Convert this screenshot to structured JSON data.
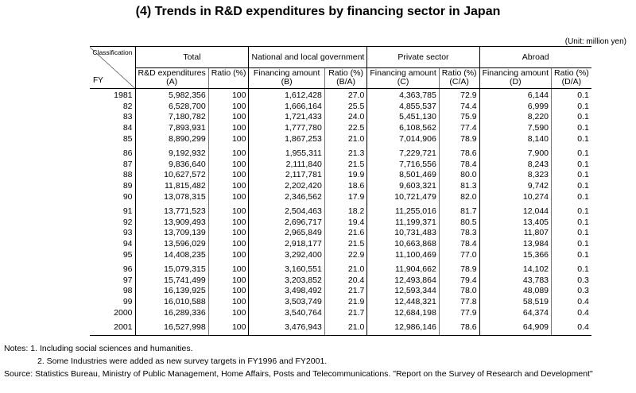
{
  "title": "(4) Trends in R&D expenditures by financing sector in Japan",
  "unit": "(Unit: million yen)",
  "header": {
    "classification": "Classification",
    "fy": "FY",
    "total": "Total",
    "national": "National and local government",
    "private": "Private sector",
    "abroad": "Abroad",
    "rd_expenditures": "R&D expenditures",
    "rd_code": "(A)",
    "ratio": "Ratio (%)",
    "financing_amount": "Financing amount",
    "b_code": "(B)",
    "ba_code": "(B/A)",
    "c_code": "(C)",
    "ca_code": "(C/A)",
    "d_code": "(D)",
    "da_code": "(D/A)"
  },
  "rows": [
    {
      "fy": "1981",
      "total": "5,982,356",
      "total_ratio": "100",
      "gov": "1,612,428",
      "gov_ratio": "27.0",
      "priv": "4,363,785",
      "priv_ratio": "72.9",
      "abroad": "6,144",
      "abroad_ratio": "0.1"
    },
    {
      "fy": "82",
      "total": "6,528,700",
      "total_ratio": "100",
      "gov": "1,666,164",
      "gov_ratio": "25.5",
      "priv": "4,855,537",
      "priv_ratio": "74.4",
      "abroad": "6,999",
      "abroad_ratio": "0.1"
    },
    {
      "fy": "83",
      "total": "7,180,782",
      "total_ratio": "100",
      "gov": "1,721,433",
      "gov_ratio": "24.0",
      "priv": "5,451,130",
      "priv_ratio": "75.9",
      "abroad": "8,220",
      "abroad_ratio": "0.1"
    },
    {
      "fy": "84",
      "total": "7,893,931",
      "total_ratio": "100",
      "gov": "1,777,780",
      "gov_ratio": "22.5",
      "priv": "6,108,562",
      "priv_ratio": "77.4",
      "abroad": "7,590",
      "abroad_ratio": "0.1"
    },
    {
      "fy": "85",
      "total": "8,890,299",
      "total_ratio": "100",
      "gov": "1,867,253",
      "gov_ratio": "21.0",
      "priv": "7,014,906",
      "priv_ratio": "78.9",
      "abroad": "8,140",
      "abroad_ratio": "0.1"
    },
    {
      "fy": "86",
      "total": "9,192,932",
      "total_ratio": "100",
      "gov": "1,955,311",
      "gov_ratio": "21.3",
      "priv": "7,229,721",
      "priv_ratio": "78.6",
      "abroad": "7,900",
      "abroad_ratio": "0.1"
    },
    {
      "fy": "87",
      "total": "9,836,640",
      "total_ratio": "100",
      "gov": "2,111,840",
      "gov_ratio": "21.5",
      "priv": "7,716,556",
      "priv_ratio": "78.4",
      "abroad": "8,243",
      "abroad_ratio": "0.1"
    },
    {
      "fy": "88",
      "total": "10,627,572",
      "total_ratio": "100",
      "gov": "2,117,781",
      "gov_ratio": "19.9",
      "priv": "8,501,469",
      "priv_ratio": "80.0",
      "abroad": "8,323",
      "abroad_ratio": "0.1"
    },
    {
      "fy": "89",
      "total": "11,815,482",
      "total_ratio": "100",
      "gov": "2,202,420",
      "gov_ratio": "18.6",
      "priv": "9,603,321",
      "priv_ratio": "81.3",
      "abroad": "9,742",
      "abroad_ratio": "0.1"
    },
    {
      "fy": "90",
      "total": "13,078,315",
      "total_ratio": "100",
      "gov": "2,346,562",
      "gov_ratio": "17.9",
      "priv": "10,721,479",
      "priv_ratio": "82.0",
      "abroad": "10,274",
      "abroad_ratio": "0.1"
    },
    {
      "fy": "91",
      "total": "13,771,523",
      "total_ratio": "100",
      "gov": "2,504,463",
      "gov_ratio": "18.2",
      "priv": "11,255,016",
      "priv_ratio": "81.7",
      "abroad": "12,044",
      "abroad_ratio": "0.1"
    },
    {
      "fy": "92",
      "total": "13,909,493",
      "total_ratio": "100",
      "gov": "2,696,717",
      "gov_ratio": "19.4",
      "priv": "11,199,371",
      "priv_ratio": "80.5",
      "abroad": "13,405",
      "abroad_ratio": "0.1"
    },
    {
      "fy": "93",
      "total": "13,709,139",
      "total_ratio": "100",
      "gov": "2,965,849",
      "gov_ratio": "21.6",
      "priv": "10,731,483",
      "priv_ratio": "78.3",
      "abroad": "11,807",
      "abroad_ratio": "0.1"
    },
    {
      "fy": "94",
      "total": "13,596,029",
      "total_ratio": "100",
      "gov": "2,918,177",
      "gov_ratio": "21.5",
      "priv": "10,663,868",
      "priv_ratio": "78.4",
      "abroad": "13,984",
      "abroad_ratio": "0.1"
    },
    {
      "fy": "95",
      "total": "14,408,235",
      "total_ratio": "100",
      "gov": "3,292,400",
      "gov_ratio": "22.9",
      "priv": "11,100,469",
      "priv_ratio": "77.0",
      "abroad": "15,366",
      "abroad_ratio": "0.1"
    },
    {
      "fy": "96",
      "total": "15,079,315",
      "total_ratio": "100",
      "gov": "3,160,551",
      "gov_ratio": "21.0",
      "priv": "11,904,662",
      "priv_ratio": "78.9",
      "abroad": "14,102",
      "abroad_ratio": "0.1"
    },
    {
      "fy": "97",
      "total": "15,741,499",
      "total_ratio": "100",
      "gov": "3,203,852",
      "gov_ratio": "20.4",
      "priv": "12,493,864",
      "priv_ratio": "79.4",
      "abroad": "43,783",
      "abroad_ratio": "0.3"
    },
    {
      "fy": "98",
      "total": "16,139,925",
      "total_ratio": "100",
      "gov": "3,498,492",
      "gov_ratio": "21.7",
      "priv": "12,593,344",
      "priv_ratio": "78.0",
      "abroad": "48,089",
      "abroad_ratio": "0.3"
    },
    {
      "fy": "99",
      "total": "16,010,588",
      "total_ratio": "100",
      "gov": "3,503,749",
      "gov_ratio": "21.9",
      "priv": "12,448,321",
      "priv_ratio": "77.8",
      "abroad": "58,519",
      "abroad_ratio": "0.4"
    },
    {
      "fy": "2000",
      "total": "16,289,336",
      "total_ratio": "100",
      "gov": "3,540,764",
      "gov_ratio": "21.7",
      "priv": "12,684,198",
      "priv_ratio": "77.9",
      "abroad": "64,374",
      "abroad_ratio": "0.4"
    },
    {
      "fy": "2001",
      "total": "16,527,998",
      "total_ratio": "100",
      "gov": "3,476,943",
      "gov_ratio": "21.0",
      "priv": "12,986,146",
      "priv_ratio": "78.6",
      "abroad": "64,909",
      "abroad_ratio": "0.4"
    }
  ],
  "notes": {
    "note1": "Notes: 1. Including social sciences and humanities.",
    "note2": "2. Some Industries were added as new survey targets in FY1996 and FY2001.",
    "source": "Source: Statistics Bureau, Ministry of Public Management, Home Affairs, Posts and Telecommunications. \"Report on the Survey of Research and Development\""
  }
}
